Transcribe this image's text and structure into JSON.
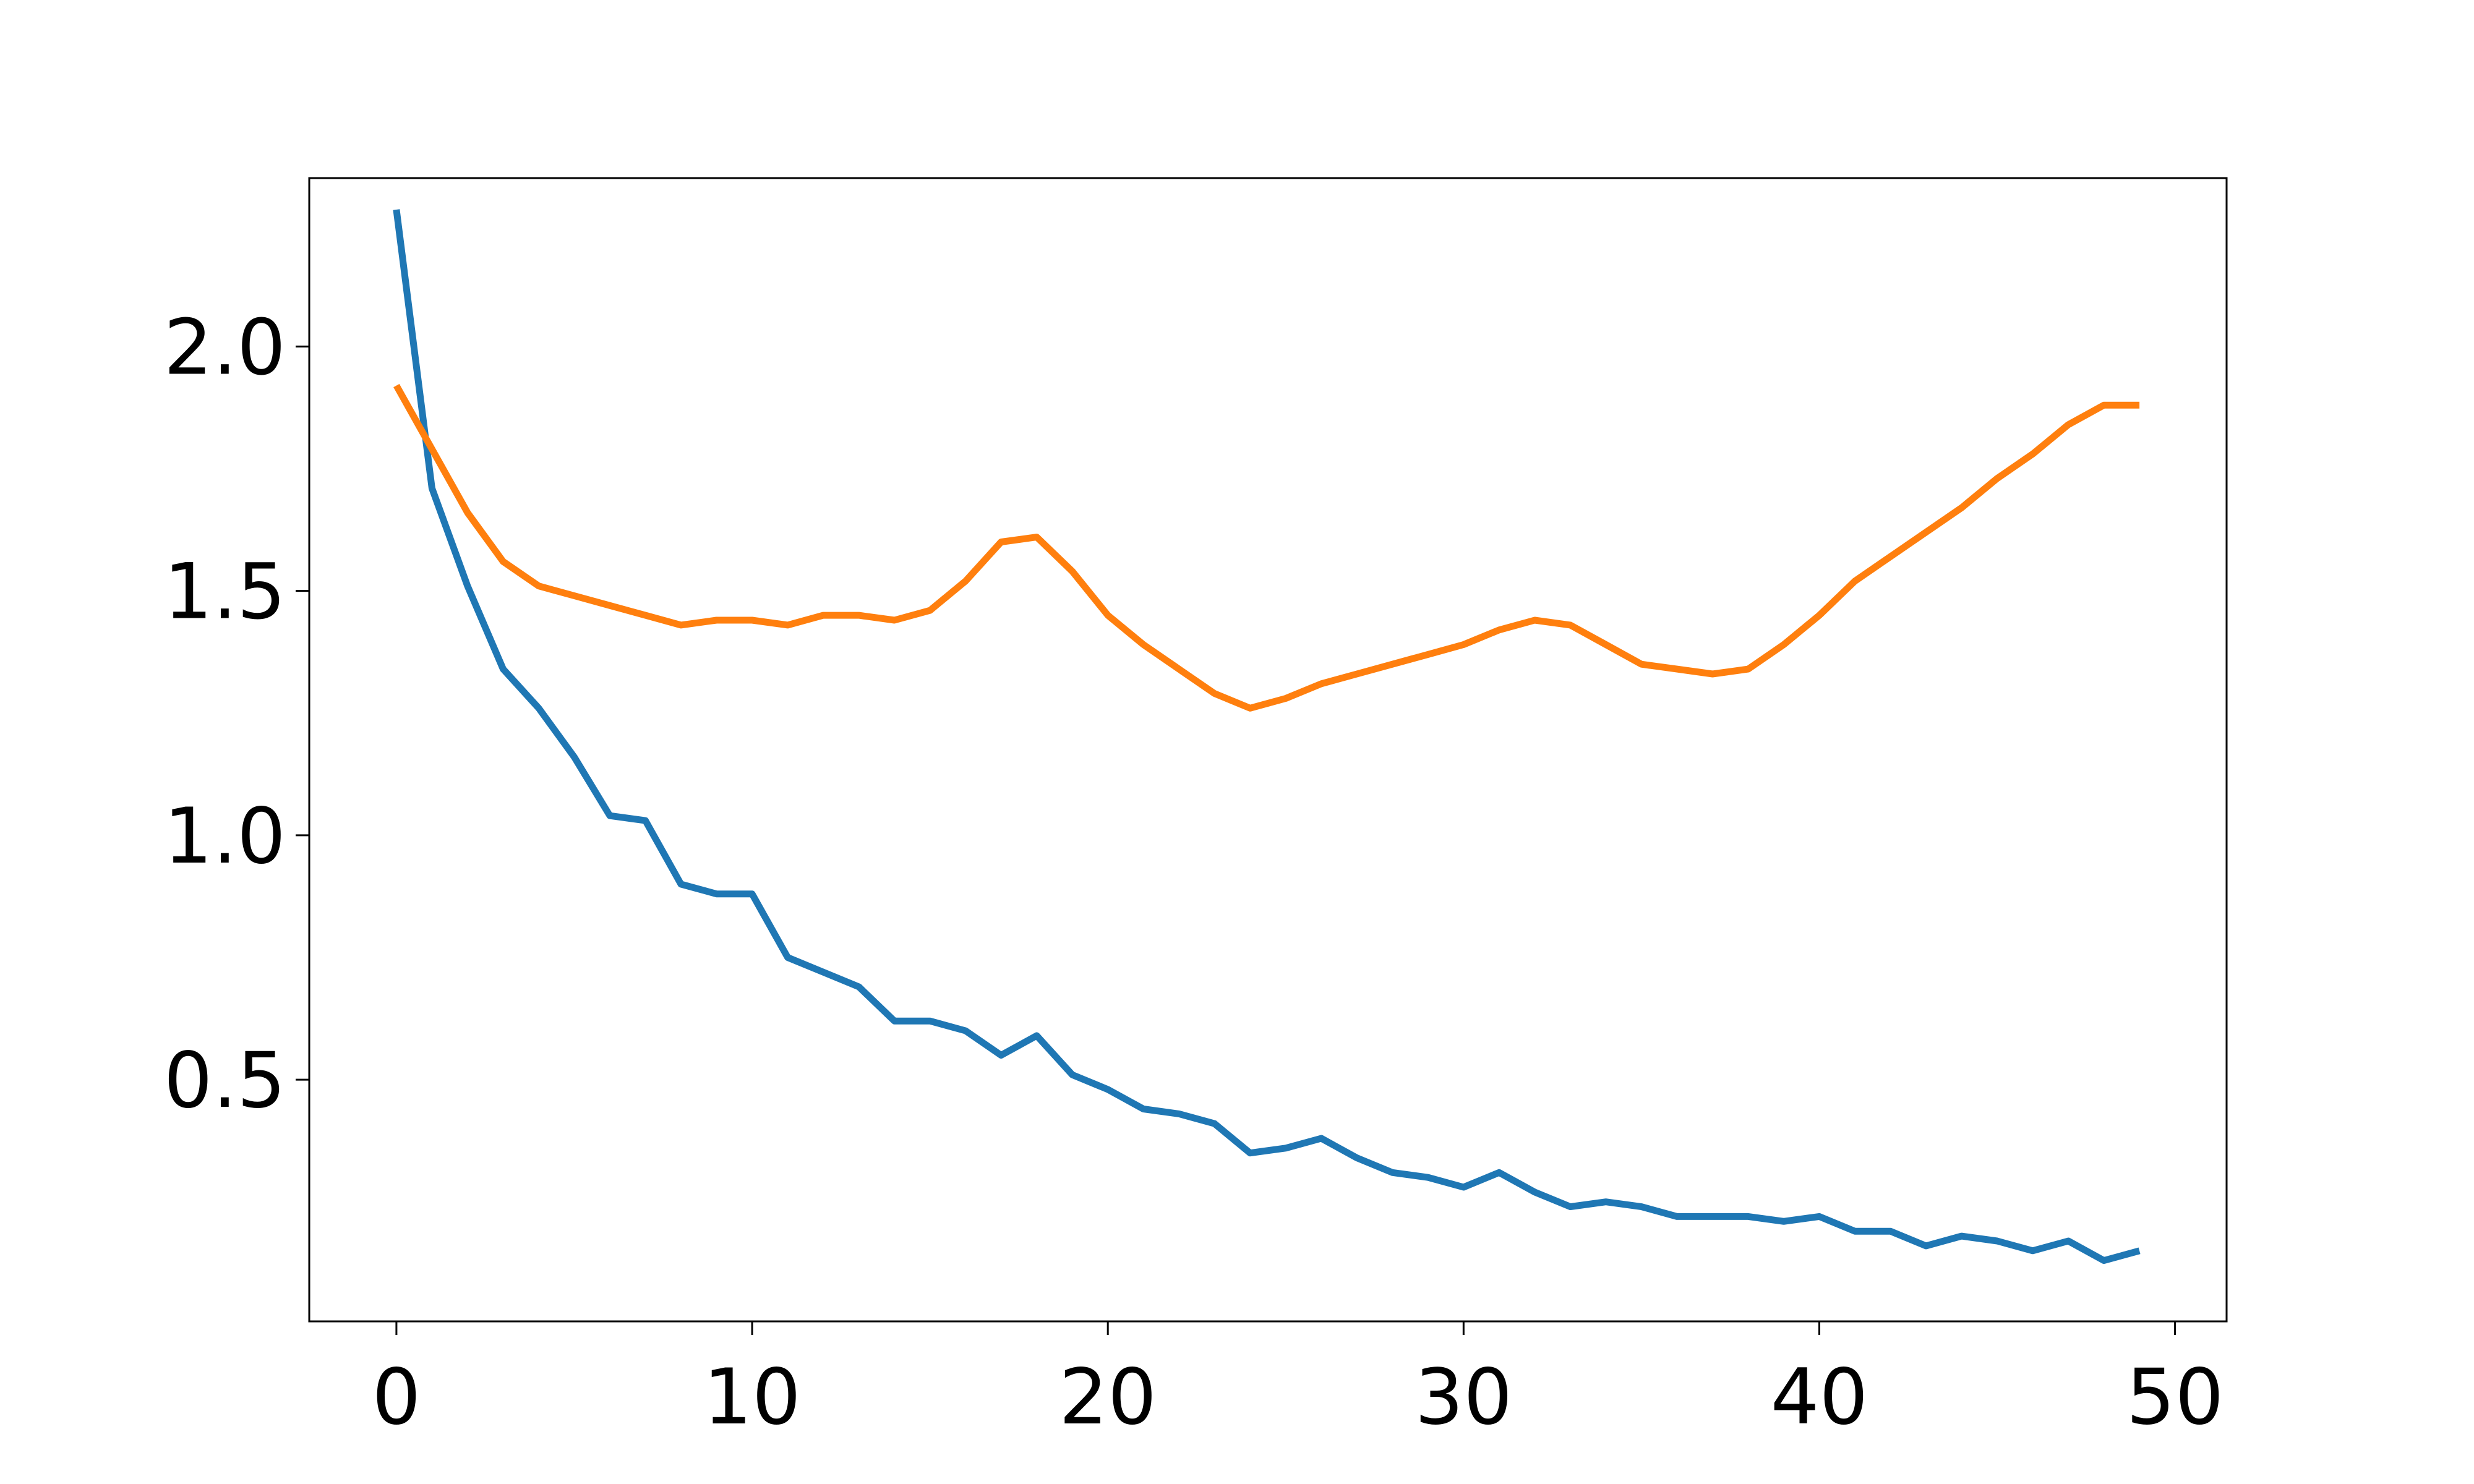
{
  "chart_data": {
    "type": "line",
    "title": "",
    "xlabel": "",
    "ylabel": "",
    "xlim": [
      -2.45,
      51.45
    ],
    "ylim": [
      0.0055,
      2.3445
    ],
    "grid": false,
    "x": [
      0,
      1,
      2,
      3,
      4,
      5,
      6,
      7,
      8,
      9,
      10,
      11,
      12,
      13,
      14,
      15,
      16,
      17,
      18,
      19,
      20,
      21,
      22,
      23,
      24,
      25,
      26,
      27,
      28,
      29,
      30,
      31,
      32,
      33,
      34,
      35,
      36,
      37,
      38,
      39,
      40,
      41,
      42,
      43,
      44,
      45,
      46,
      47,
      48,
      49
    ],
    "x_ticks": [
      {
        "value": 0,
        "label": "0"
      },
      {
        "value": 10,
        "label": "10"
      },
      {
        "value": 20,
        "label": "20"
      },
      {
        "value": 30,
        "label": "30"
      },
      {
        "value": 40,
        "label": "40"
      },
      {
        "value": 50,
        "label": "50"
      }
    ],
    "y_ticks": [
      {
        "value": 0.5,
        "label": "0.5"
      },
      {
        "value": 1.0,
        "label": "1.0"
      },
      {
        "value": 1.5,
        "label": "1.5"
      },
      {
        "value": 2.0,
        "label": "2.0"
      }
    ],
    "series": [
      {
        "color": "#1f77b4",
        "values": [
          2.28,
          1.71,
          1.51,
          1.34,
          1.26,
          1.16,
          1.04,
          1.03,
          0.9,
          0.88,
          0.88,
          0.75,
          0.72,
          0.69,
          0.62,
          0.62,
          0.6,
          0.55,
          0.59,
          0.51,
          0.48,
          0.44,
          0.43,
          0.41,
          0.35,
          0.36,
          0.38,
          0.34,
          0.31,
          0.3,
          0.28,
          0.31,
          0.27,
          0.24,
          0.25,
          0.24,
          0.22,
          0.22,
          0.22,
          0.21,
          0.22,
          0.19,
          0.19,
          0.16,
          0.18,
          0.17,
          0.15,
          0.17,
          0.13,
          0.15
        ]
      },
      {
        "color": "#ff7f0e",
        "values": [
          1.92,
          1.79,
          1.66,
          1.56,
          1.51,
          1.49,
          1.47,
          1.45,
          1.43,
          1.44,
          1.44,
          1.43,
          1.45,
          1.45,
          1.44,
          1.46,
          1.52,
          1.6,
          1.61,
          1.54,
          1.45,
          1.39,
          1.34,
          1.29,
          1.26,
          1.28,
          1.31,
          1.33,
          1.35,
          1.37,
          1.39,
          1.42,
          1.44,
          1.43,
          1.39,
          1.35,
          1.34,
          1.33,
          1.34,
          1.39,
          1.45,
          1.52,
          1.57,
          1.62,
          1.67,
          1.73,
          1.78,
          1.84,
          1.88,
          1.88
        ]
      }
    ]
  }
}
